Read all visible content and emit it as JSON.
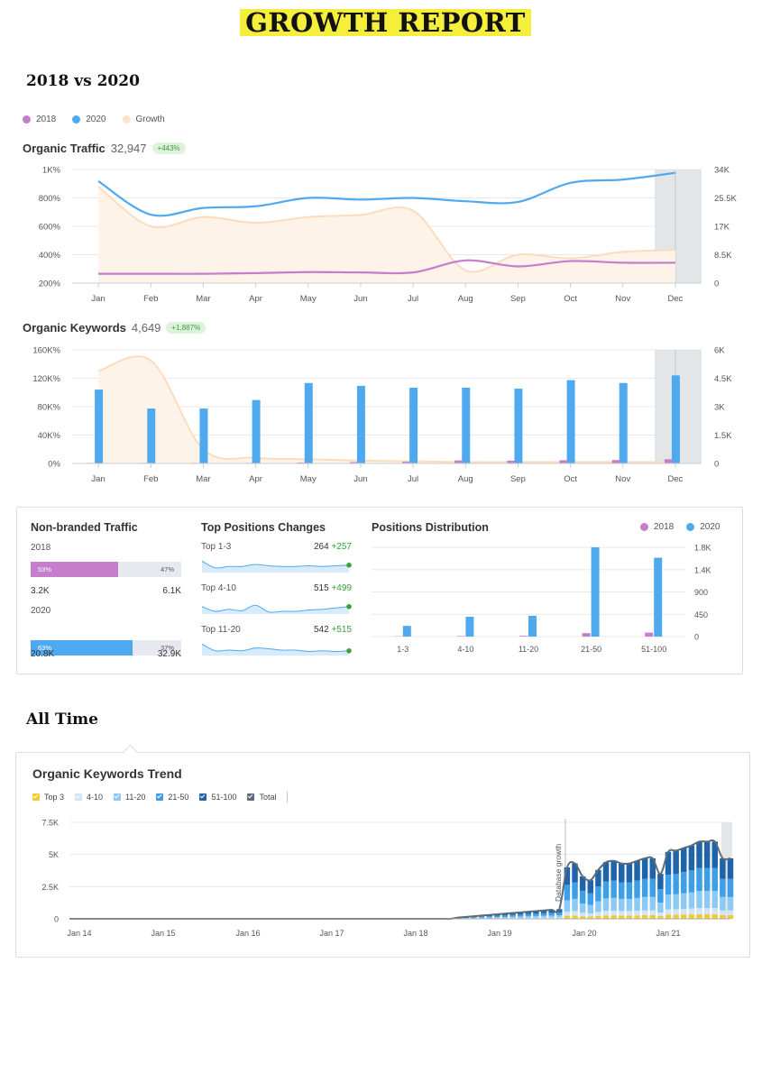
{
  "header": {
    "title": "GROWTH REPORT"
  },
  "sections": {
    "compare": "2018 vs 2020",
    "all_time": "All Time"
  },
  "legend": [
    {
      "label": "2018",
      "color": "#c57dcc"
    },
    {
      "label": "2020",
      "color": "#4fa9ef"
    },
    {
      "label": "Growth",
      "color": "#fde3c8"
    }
  ],
  "traffic": {
    "label": "Organic Traffic",
    "value": "32,947",
    "badge": "+443%"
  },
  "keywords": {
    "label": "Organic Keywords",
    "value": "4,649",
    "badge": "+1,887%"
  },
  "chart_data": [
    {
      "type": "line",
      "categories": [
        "Jan",
        "Feb",
        "Mar",
        "Apr",
        "May",
        "Jun",
        "Jul",
        "Aug",
        "Sep",
        "Oct",
        "Nov",
        "Dec"
      ],
      "left_ticks": [
        "1K%",
        "800%",
        "600%",
        "400%",
        "200%"
      ],
      "right_ticks": [
        "34K",
        "25.5K",
        "17K",
        "8.5K",
        "0"
      ],
      "left_ylim": [
        200,
        1000
      ],
      "right_ylim": [
        0,
        34000
      ],
      "series": [
        {
          "name": "2020",
          "axis": "right",
          "values": [
            30500,
            20500,
            22500,
            23000,
            25500,
            25000,
            25500,
            24500,
            24300,
            30000,
            31000,
            33000
          ]
        },
        {
          "name": "2018",
          "axis": "right",
          "values": [
            2800,
            2800,
            2800,
            3000,
            3300,
            3200,
            3200,
            6800,
            5000,
            6600,
            6100,
            6100
          ]
        },
        {
          "name": "Growth",
          "axis": "left",
          "values": [
            880,
            600,
            665,
            625,
            665,
            680,
            710,
            290,
            400,
            375,
            420,
            435
          ]
        }
      ]
    },
    {
      "type": "bar",
      "categories": [
        "Jan",
        "Feb",
        "Mar",
        "Apr",
        "May",
        "Jun",
        "Jul",
        "Aug",
        "Sep",
        "Oct",
        "Nov",
        "Dec"
      ],
      "left_ticks": [
        "160K%",
        "120K%",
        "80K%",
        "40K%",
        "0%"
      ],
      "right_ticks": [
        "6K",
        "4.5K",
        "3K",
        "1.5K",
        "0"
      ],
      "left_ylim": [
        0,
        160000
      ],
      "right_ylim": [
        0,
        6000
      ],
      "series": [
        {
          "name": "2020",
          "axis": "right",
          "values": [
            3900,
            2900,
            2900,
            3350,
            4250,
            4100,
            4000,
            4000,
            3950,
            4400,
            4250,
            4650
          ]
        },
        {
          "name": "2018",
          "axis": "right",
          "values": [
            30,
            30,
            30,
            30,
            50,
            70,
            90,
            160,
            150,
            170,
            180,
            220
          ]
        },
        {
          "name": "Growth",
          "axis": "left",
          "values": [
            130000,
            145000,
            20000,
            8000,
            6000,
            4000,
            3000,
            2000,
            2000,
            2000,
            2000,
            2000
          ]
        }
      ]
    },
    {
      "type": "bar",
      "title": "Positions Distribution",
      "categories": [
        "1-3",
        "4-10",
        "11-20",
        "21-50",
        "51-100"
      ],
      "ticks": [
        "1.8K",
        "1.4K",
        "900",
        "450",
        "0"
      ],
      "ylim": [
        0,
        1800
      ],
      "series": [
        {
          "name": "2018",
          "values": [
            5,
            10,
            15,
            70,
            80
          ]
        },
        {
          "name": "2020",
          "values": [
            215,
            400,
            420,
            1800,
            1590
          ]
        }
      ]
    },
    {
      "type": "area",
      "title": "Organic Keywords Trend",
      "x_labels": [
        "Jan 14",
        "Jan 15",
        "Jan 16",
        "Jan 17",
        "Jan 18",
        "Jan 19",
        "Jan 20",
        "Jan 21"
      ],
      "y_ticks": [
        "7.5K",
        "5K",
        "2.5K",
        "0"
      ],
      "ylim": [
        0,
        7500
      ],
      "annotation": "Database growth",
      "series_names": [
        "Top 3",
        "4-10",
        "11-20",
        "21-50",
        "51-100",
        "Total"
      ],
      "total": [
        0,
        0,
        0,
        0,
        0,
        0,
        0,
        0,
        0,
        0,
        0,
        0,
        0,
        0,
        0,
        0,
        0,
        0,
        0,
        0,
        0,
        0,
        0,
        0,
        0,
        0,
        0,
        0,
        0,
        0,
        0,
        0,
        0,
        0,
        0,
        0,
        0,
        0,
        0,
        0,
        0,
        0,
        0,
        0,
        0,
        0,
        0,
        0,
        0,
        0,
        100,
        150,
        200,
        250,
        300,
        350,
        400,
        450,
        500,
        550,
        600,
        650,
        700,
        750,
        4000,
        4300,
        3300,
        3000,
        3800,
        4400,
        4500,
        4300,
        4300,
        4500,
        4700,
        4700,
        3500,
        5200,
        5300,
        5500,
        5700,
        6000,
        6000,
        6000,
        4700,
        4700
      ]
    }
  ],
  "panel": {
    "nonbranded": {
      "title": "Non-branded Traffic",
      "y2018": "2018",
      "y2020": "2020",
      "bar2018": {
        "pct": 0.53,
        "left": "53%",
        "right": "47%",
        "v1": "3.2K",
        "v2": "6.1K"
      },
      "bar2020": {
        "pct": 0.63,
        "left": "63%",
        "right": "37%",
        "v1": "20.8K",
        "v2": "32.9K"
      }
    },
    "toppos": {
      "title": "Top Positions Changes",
      "rows": [
        {
          "label": "Top 1-3",
          "value": "264",
          "change": "+257",
          "spark": [
            0.85,
            0.35,
            0.45,
            0.45,
            0.6,
            0.5,
            0.45,
            0.45,
            0.5,
            0.45,
            0.5,
            0.55
          ]
        },
        {
          "label": "Top 4-10",
          "value": "515",
          "change": "+499",
          "spark": [
            0.55,
            0.2,
            0.35,
            0.25,
            0.65,
            0.15,
            0.2,
            0.2,
            0.3,
            0.35,
            0.45,
            0.55
          ]
        },
        {
          "label": "Top 11-20",
          "value": "542",
          "change": "+515",
          "spark": [
            0.85,
            0.35,
            0.4,
            0.35,
            0.55,
            0.5,
            0.4,
            0.4,
            0.3,
            0.35,
            0.3,
            0.35
          ]
        }
      ]
    },
    "legend": [
      {
        "label": "2018",
        "color": "#c57dcc"
      },
      {
        "label": "2020",
        "color": "#4fa9ef"
      }
    ]
  },
  "trend_legend": [
    {
      "label": "Top 3",
      "color": "#f3c935"
    },
    {
      "label": "4-10",
      "color": "#cfe6fa"
    },
    {
      "label": "11-20",
      "color": "#8ccaf4"
    },
    {
      "label": "21-50",
      "color": "#3d9fe8"
    },
    {
      "label": "51-100",
      "color": "#1f64a8"
    },
    {
      "label": "Total",
      "color": "#5d6b7a"
    }
  ]
}
